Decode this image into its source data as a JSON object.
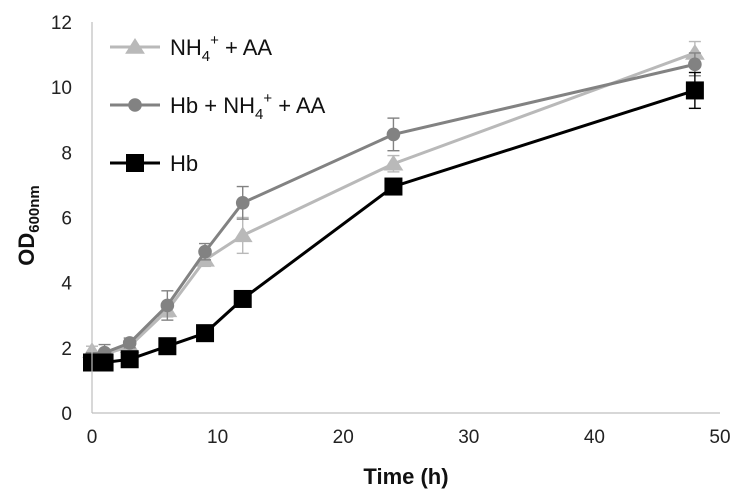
{
  "chart_data": {
    "type": "line",
    "xlabel": "Time (h)",
    "ylabel": {
      "main": "OD",
      "subscript": "600nm"
    },
    "xlim": [
      0,
      50
    ],
    "ylim": [
      0,
      12
    ],
    "xticks": [
      0,
      10,
      20,
      30,
      40,
      50
    ],
    "yticks": [
      0,
      2,
      4,
      6,
      8,
      10,
      12
    ],
    "grid": false,
    "legend_position": "top-left",
    "series": [
      {
        "name": "NH4+ + AA",
        "legend": {
          "base": "NH",
          "sub": "4",
          "sup": "+",
          "rest": " + AA"
        },
        "color": "#b9b9b9",
        "marker": "triangle",
        "x": [
          0,
          1,
          3,
          6,
          9,
          12,
          24,
          48
        ],
        "y": [
          1.9,
          1.8,
          2.05,
          3.15,
          4.7,
          5.45,
          7.65,
          11.05
        ],
        "err": [
          0.15,
          0.12,
          0.12,
          0.2,
          0.2,
          0.55,
          0.25,
          0.35
        ]
      },
      {
        "name": "Hb + NH4+ + AA",
        "legend": {
          "base": "Hb + NH",
          "sub": "4",
          "sup": "+",
          "rest": " + AA"
        },
        "color": "#828282",
        "marker": "circle",
        "x": [
          0,
          1,
          3,
          6,
          9,
          12,
          24,
          48
        ],
        "y": [
          1.65,
          1.85,
          2.15,
          3.3,
          4.95,
          6.45,
          8.55,
          10.7
        ],
        "err": [
          0.2,
          0.25,
          0.15,
          0.45,
          0.25,
          0.5,
          0.5,
          0.35
        ]
      },
      {
        "name": "Hb",
        "legend": {
          "base": "Hb",
          "sub": "",
          "sup": "",
          "rest": ""
        },
        "color": "#000000",
        "marker": "square",
        "x": [
          0,
          1,
          3,
          6,
          9,
          12,
          24,
          48
        ],
        "y": [
          1.55,
          1.55,
          1.65,
          2.05,
          2.45,
          3.5,
          6.95,
          9.9
        ],
        "err": [
          0.1,
          0.1,
          0.1,
          0.1,
          0.15,
          0.15,
          0.2,
          0.55
        ]
      }
    ]
  }
}
